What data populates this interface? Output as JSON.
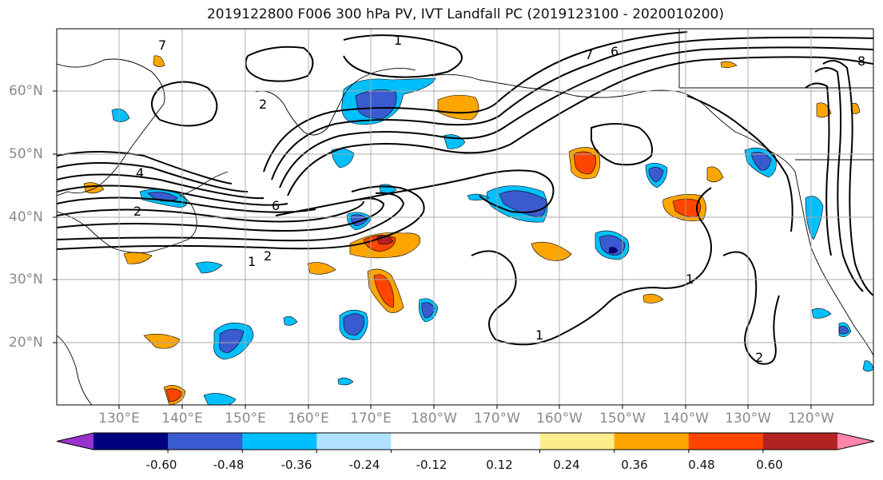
{
  "title": "2019122800 F006 300 hPa PV, IVT Landfall PC (2019123100 - 2020010200)",
  "lat_labels": [
    "60°N",
    "50°N",
    "40°N",
    "30°N",
    "20°N"
  ],
  "lon_labels": [
    "130°E",
    "140°E",
    "150°E",
    "160°E",
    "170°E",
    "180°W",
    "170°W",
    "160°W",
    "150°W",
    "140°W",
    "130°W",
    "120°W"
  ],
  "colorbar": {
    "colors": [
      "#9932CC",
      "#000080",
      "#3A5BD0",
      "#00BFFF",
      "#B0E2FF",
      "#FFFFFF",
      "#FFFFFF",
      "#FFEC8B",
      "#FFA500",
      "#FF4500",
      "#B22222",
      "#FF85AB"
    ],
    "tick_labels": [
      "-0.60",
      "-0.48",
      "-0.36",
      "-0.24",
      "-0.12",
      "0.12",
      "0.24",
      "0.36",
      "0.48",
      "0.60"
    ]
  },
  "contour_labels": [
    "1",
    "2",
    "4",
    "6",
    "7",
    "8",
    "1",
    "2",
    "6",
    "7",
    "1",
    "2",
    "1",
    "2"
  ]
}
